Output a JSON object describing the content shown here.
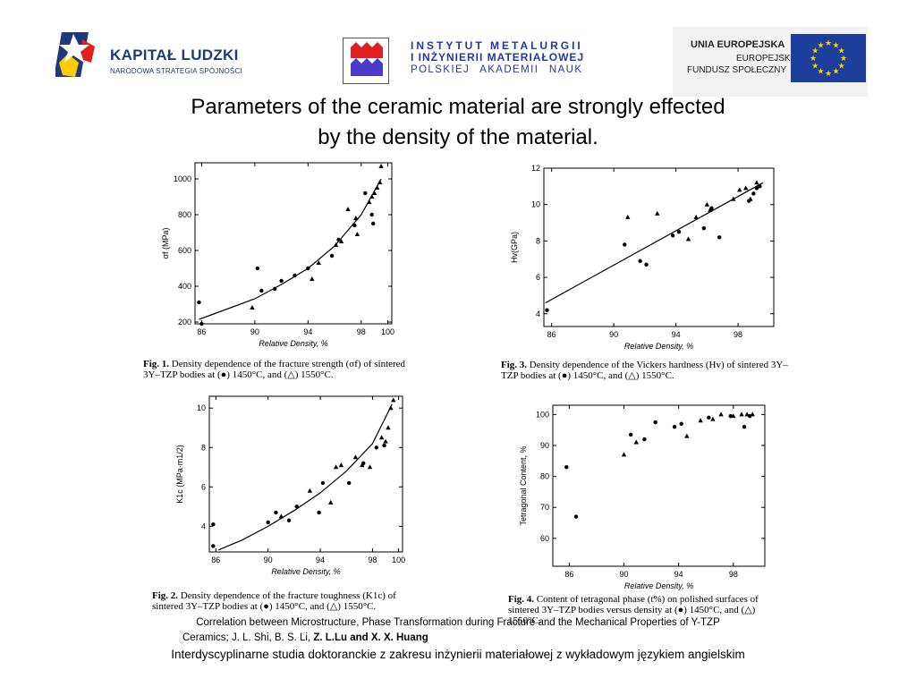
{
  "header": {
    "kapital_title": "KAPITAŁ LUDZKI",
    "kapital_sub": "NARODOWA STRATEGIA SPÓJNOŚCI",
    "imim_line1": "INSTYTUT METALURGII",
    "imim_line2": "I INŻYNIERII MATERIAŁOWEJ",
    "imim_line3": "POLSKIEJ AKADEMII NAUK",
    "ue_line1": "UNIA EUROPEJSKA",
    "ue_line2": "EUROPEJSKI",
    "ue_line3": "FUNDUSZ SPOŁECZNY"
  },
  "slide": {
    "title_line1": "Parameters of the ceramic material are strongly effected",
    "title_line2": "by the density of the material."
  },
  "captions": {
    "fig1_label": "Fig. 1.",
    "fig1_text": "Density dependence of the fracture strength (σf) of sintered 3Y–TZP bodies at (●) 1450°C, and (△) 1550°C.",
    "fig2_label": "Fig. 2.",
    "fig2_text": "Density dependence of the fracture toughness (K1c) of sintered 3Y–TZP bodies at (●) 1450°C, and (△) 1550°C.",
    "fig3_label": "Fig. 3.",
    "fig3_text": "Density dependence of the Vickers hardness (Hv) of sintered 3Y–TZP bodies at (●) 1450°C, and (△) 1550°C.",
    "fig4_label": "Fig. 4.",
    "fig4_text": "Content of tetragonal phase (t%) on polished surfaces of sintered 3Y–TZP bodies versus density at (●) 1450°C, and (△) 1550°C."
  },
  "reference": {
    "line1": "Correlation between Microstructure, Phase Transformation during Fracture and the Mechanical Properties of Y-TZP",
    "line2_prefix": "Ceramics; J. L. Shi, B. S. Li,",
    "line2_bold": "Z. L.Lu  and X. X. Huang"
  },
  "footer": {
    "text": "Interdyscyplinarne studia doktoranckie z zakresu inżynierii materiałowej z wykładowym językiem angielskim"
  },
  "colors": {
    "kapital_blue": "#1f3a7a",
    "imim_blue": "#1f3a9a",
    "imim_red": "#e02020",
    "eu_blue": "#1d3e9a",
    "eu_gold": "#ffd200"
  },
  "chart_data": [
    {
      "type": "scatter",
      "title": "",
      "xlabel": "Relative Density, %",
      "ylabel": "σf (MPa)",
      "xlim": [
        85.5,
        100.3
      ],
      "ylim": [
        190,
        1090
      ],
      "xticks": [
        86,
        90,
        94,
        98,
        100
      ],
      "yticks": [
        200,
        400,
        600,
        800,
        1000
      ],
      "series": [
        {
          "marker": "circle",
          "points": [
            [
              85.8,
              310
            ],
            [
              86,
              190
            ],
            [
              90.2,
              500
            ],
            [
              90.5,
              375
            ],
            [
              91.5,
              385
            ],
            [
              92,
              430
            ],
            [
              93,
              460
            ],
            [
              94,
              500
            ],
            [
              95.8,
              570
            ],
            [
              96.3,
              660
            ],
            [
              97.5,
              740
            ],
            [
              98.3,
              920
            ],
            [
              98.8,
              800
            ],
            [
              98.9,
              750
            ]
          ]
        },
        {
          "marker": "triangle",
          "points": [
            [
              89.8,
              280
            ],
            [
              94.3,
              440
            ],
            [
              94.8,
              530
            ],
            [
              96.1,
              630
            ],
            [
              96.5,
              650
            ],
            [
              97,
              830
            ],
            [
              97.6,
              780
            ],
            [
              97.7,
              690
            ],
            [
              98.6,
              870
            ],
            [
              98.8,
              900
            ],
            [
              99.0,
              920
            ],
            [
              99.2,
              950
            ],
            [
              99.4,
              980
            ],
            [
              99.5,
              1070
            ]
          ]
        }
      ],
      "fit": [
        [
          85.8,
          215
        ],
        [
          88,
          275
        ],
        [
          90,
          330
        ],
        [
          92,
          410
        ],
        [
          94,
          500
        ],
        [
          96,
          625
        ],
        [
          98,
          800
        ],
        [
          99.5,
          1000
        ]
      ]
    },
    {
      "type": "scatter",
      "title": "",
      "xlabel": "Relative Density, %",
      "ylabel": "K1c (MPa·m1/2)",
      "xlim": [
        85.5,
        100.3
      ],
      "ylim": [
        2.7,
        10.6
      ],
      "xticks": [
        86,
        90,
        94,
        98,
        100
      ],
      "yticks": [
        4,
        6,
        8,
        10
      ],
      "series": [
        {
          "marker": "circle",
          "points": [
            [
              85.8,
              4.1
            ],
            [
              85.8,
              3.0
            ],
            [
              90,
              4.2
            ],
            [
              90.6,
              4.7
            ],
            [
              91.6,
              4.3
            ],
            [
              92.2,
              5.0
            ],
            [
              93.9,
              4.7
            ],
            [
              94.2,
              6.2
            ],
            [
              96.2,
              6.2
            ],
            [
              97.3,
              7.2
            ],
            [
              98.3,
              8.0
            ],
            [
              98.9,
              8.1
            ]
          ]
        },
        {
          "marker": "triangle",
          "points": [
            [
              91.0,
              4.5
            ],
            [
              93.2,
              5.8
            ],
            [
              94.8,
              5.2
            ],
            [
              95.2,
              7.0
            ],
            [
              95.6,
              7.1
            ],
            [
              96.7,
              7.5
            ],
            [
              97.2,
              7.1
            ],
            [
              97.8,
              7.0
            ],
            [
              98.7,
              8.5
            ],
            [
              99.0,
              8.3
            ],
            [
              99.2,
              9.0
            ],
            [
              99.4,
              10.0
            ],
            [
              99.6,
              10.4
            ]
          ]
        }
      ],
      "fit": [
        [
          86.2,
          2.8
        ],
        [
          88,
          3.3
        ],
        [
          90,
          4.0
        ],
        [
          92,
          4.8
        ],
        [
          94,
          5.7
        ],
        [
          96,
          6.8
        ],
        [
          98,
          8.2
        ],
        [
          99.5,
          10.2
        ]
      ]
    },
    {
      "type": "scatter",
      "title": "",
      "xlabel": "Relative Density, %",
      "ylabel": "Hv(GPa)",
      "xlim": [
        85.5,
        100.3
      ],
      "ylim": [
        3.3,
        12
      ],
      "xticks": [
        86,
        90,
        94,
        98
      ],
      "yticks": [
        4,
        6,
        8,
        10,
        12
      ],
      "series": [
        {
          "marker": "circle",
          "points": [
            [
              85.7,
              4.2
            ],
            [
              90.7,
              7.8
            ],
            [
              91.7,
              6.9
            ],
            [
              92.1,
              6.7
            ],
            [
              93.8,
              8.3
            ],
            [
              94.2,
              8.5
            ],
            [
              95.8,
              8.7
            ],
            [
              96.3,
              9.8
            ],
            [
              96.8,
              8.2
            ],
            [
              98.7,
              10.2
            ],
            [
              99.0,
              10.6
            ],
            [
              99.2,
              10.9
            ],
            [
              99.4,
              11.0
            ]
          ]
        },
        {
          "marker": "triangle",
          "points": [
            [
              90.9,
              9.3
            ],
            [
              92.8,
              9.5
            ],
            [
              94.8,
              8.1
            ],
            [
              95.3,
              9.3
            ],
            [
              96.0,
              10.0
            ],
            [
              96.2,
              9.7
            ],
            [
              97.7,
              10.3
            ],
            [
              98.1,
              10.8
            ],
            [
              98.5,
              10.9
            ],
            [
              98.8,
              10.3
            ],
            [
              99.2,
              11.2
            ]
          ]
        }
      ],
      "fit": [
        [
          85.6,
          4.6
        ],
        [
          99.6,
          11.2
        ]
      ]
    },
    {
      "type": "scatter",
      "title": "",
      "xlabel": "Relative Density, %",
      "ylabel": "Tetragonal Content, %",
      "xlim": [
        84.8,
        100.3
      ],
      "ylim": [
        51,
        103
      ],
      "xticks": [
        86,
        90,
        94,
        98
      ],
      "yticks": [
        60,
        70,
        80,
        90,
        100
      ],
      "series": [
        {
          "marker": "circle",
          "points": [
            [
              85.8,
              83
            ],
            [
              86.5,
              67
            ],
            [
              90.5,
              93.5
            ],
            [
              91.5,
              92
            ],
            [
              92.3,
              97.5
            ],
            [
              93.7,
              96
            ],
            [
              94.2,
              97
            ],
            [
              96.2,
              99
            ],
            [
              97.8,
              99.5
            ],
            [
              98.8,
              96
            ],
            [
              99.2,
              99.5
            ]
          ]
        },
        {
          "marker": "triangle",
          "points": [
            [
              90,
              87
            ],
            [
              90.9,
              91
            ],
            [
              94.6,
              93
            ],
            [
              95.6,
              98
            ],
            [
              96.5,
              98.5
            ],
            [
              97.1,
              100
            ],
            [
              98.0,
              99.5
            ],
            [
              98.6,
              100
            ],
            [
              99.0,
              100
            ],
            [
              99.4,
              100
            ]
          ]
        }
      ]
    }
  ]
}
